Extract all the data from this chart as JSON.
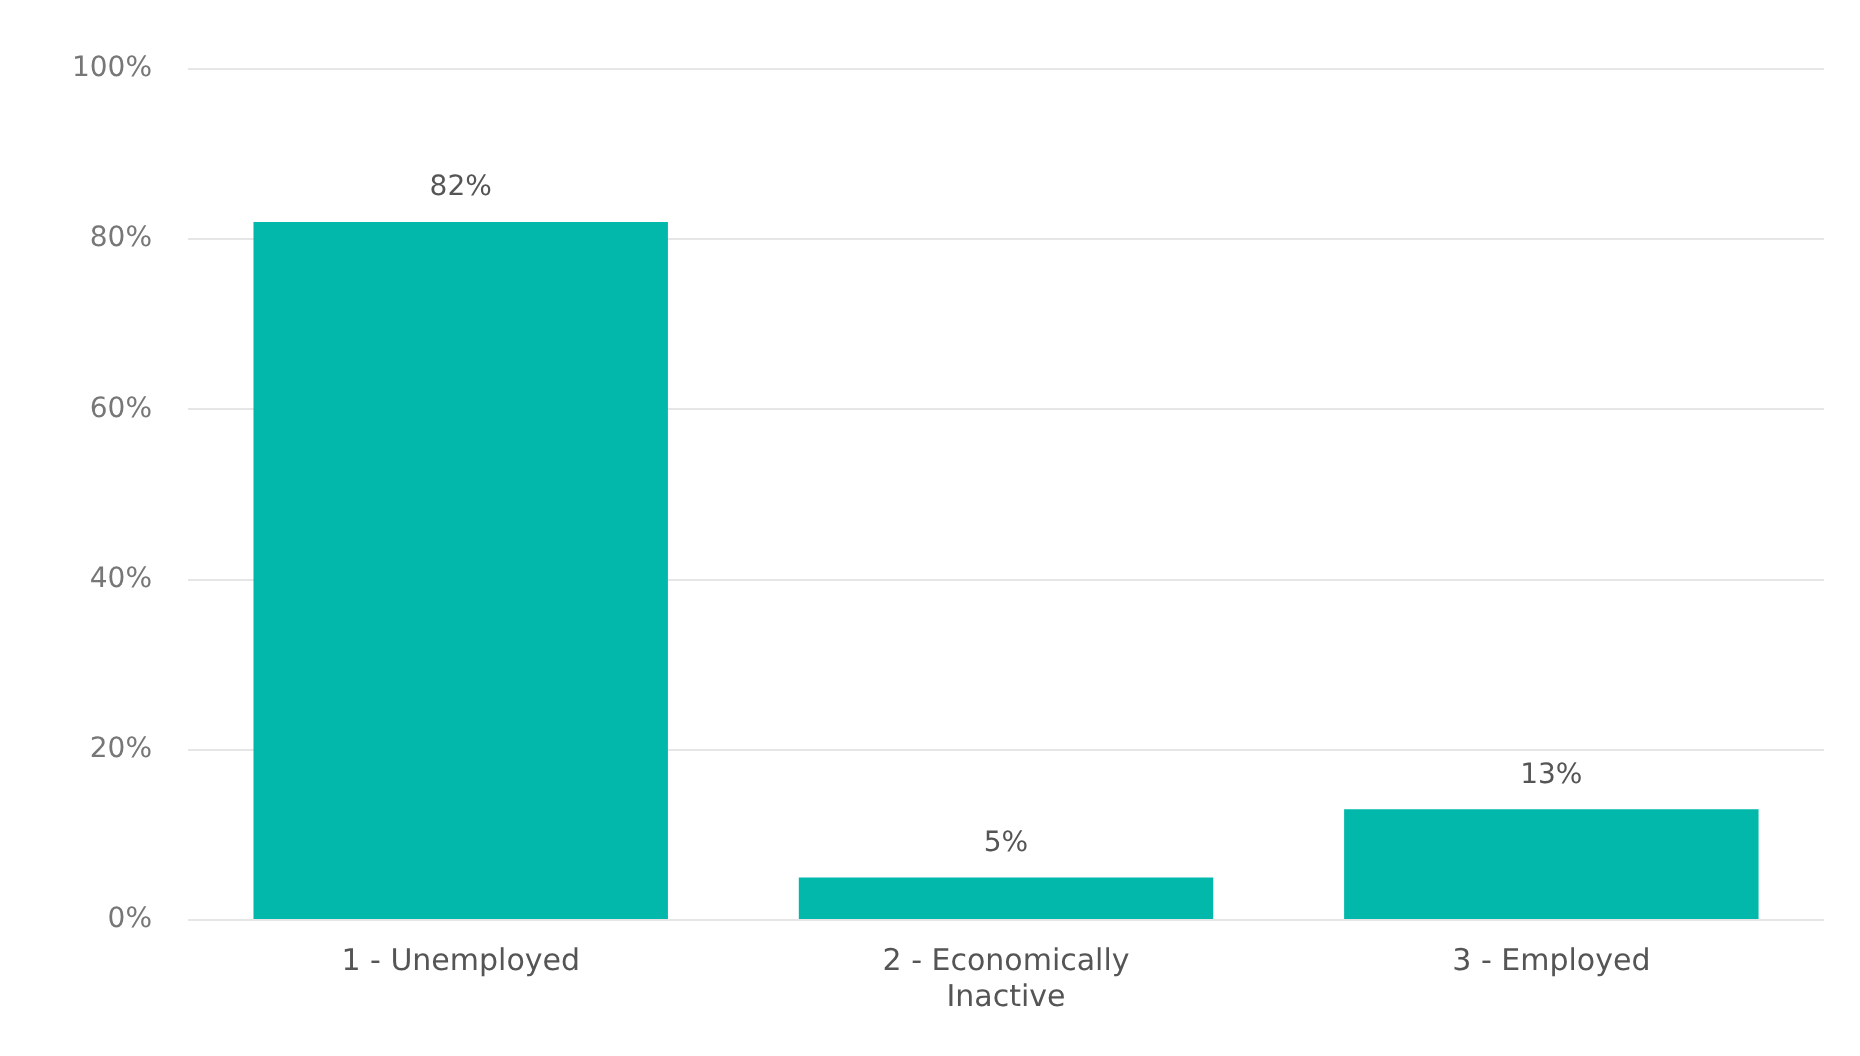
{
  "chart_data": {
    "type": "bar",
    "categories": [
      "1 - Unemployed",
      "2 - Economically Inactive",
      "3 - Employed"
    ],
    "values": [
      82,
      5,
      13
    ],
    "value_labels": [
      "82%",
      "5%",
      "13%"
    ],
    "color": "#01b8aa",
    "ylim": [
      0,
      100
    ],
    "yticks": [
      {
        "value": 0,
        "label": "0%"
      },
      {
        "value": 20,
        "label": "20%"
      },
      {
        "value": 40,
        "label": "40%"
      },
      {
        "value": 60,
        "label": "60%"
      },
      {
        "value": 80,
        "label": "80%"
      },
      {
        "value": 100,
        "label": "100%"
      }
    ],
    "grid": "y"
  }
}
